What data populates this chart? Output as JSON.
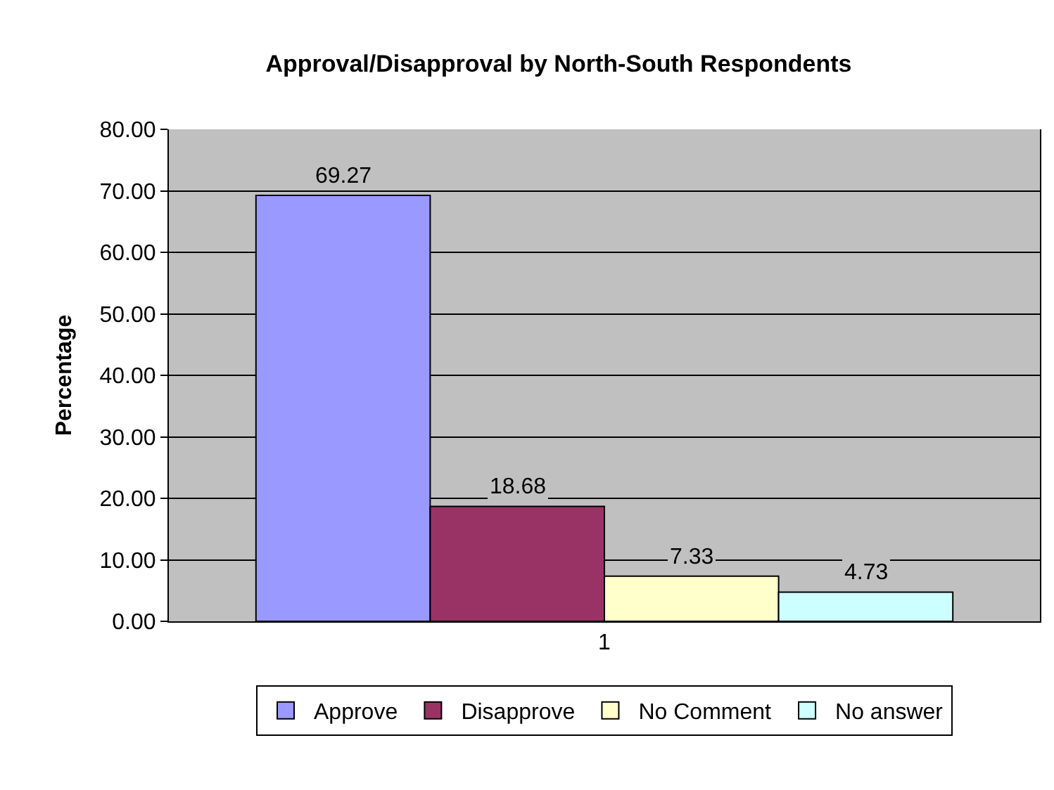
{
  "chart_data": {
    "type": "bar",
    "title": "Approval/Disapproval by North-South Respondents",
    "ylabel": "Percentage",
    "categories": [
      "1"
    ],
    "series": [
      {
        "name": "Approve",
        "color": "#9999ff",
        "values": [
          69.27
        ]
      },
      {
        "name": "Disapprove",
        "color": "#993366",
        "values": [
          18.68
        ]
      },
      {
        "name": "No Comment",
        "color": "#ffffcc",
        "values": [
          7.33
        ]
      },
      {
        "name": "No answer",
        "color": "#ccffff",
        "values": [
          4.73
        ]
      }
    ],
    "ylim": [
      0,
      80
    ],
    "yticks": [
      {
        "value": 0,
        "label": "0.00"
      },
      {
        "value": 10,
        "label": "10.00"
      },
      {
        "value": 20,
        "label": "20.00"
      },
      {
        "value": 30,
        "label": "30.00"
      },
      {
        "value": 40,
        "label": "40.00"
      },
      {
        "value": 50,
        "label": "50.00"
      },
      {
        "value": 60,
        "label": "60.00"
      },
      {
        "value": 70,
        "label": "70.00"
      },
      {
        "value": 80,
        "label": "80.00"
      }
    ],
    "grid": "y",
    "legend": "bottom",
    "data_labels": true
  }
}
